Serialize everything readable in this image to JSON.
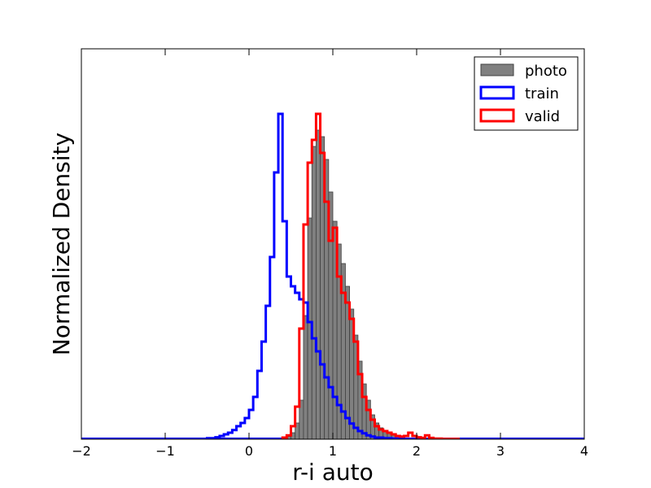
{
  "chart_data": {
    "type": "histogram",
    "xlabel": "r-i auto",
    "ylabel": "Normalized Density",
    "xlim": [
      -2,
      4
    ],
    "ylim": [
      0,
      1.2
    ],
    "x_ticks": [
      "−2",
      "−1",
      "0",
      "1",
      "2",
      "3",
      "4"
    ],
    "y_ticks": [],
    "grid": false,
    "legend": {
      "position": "top-right",
      "entries": [
        {
          "label": "photo",
          "style": "filled",
          "color": "#808080",
          "edge": "#404040"
        },
        {
          "label": "train",
          "style": "step",
          "color": "#0000ff"
        },
        {
          "label": "valid",
          "style": "step",
          "color": "#ff0000"
        }
      ]
    },
    "bin_width": 0.05,
    "series": [
      {
        "name": "photo",
        "color": "#808080",
        "edges": [
          0.4,
          0.45,
          0.5,
          0.55,
          0.6,
          0.65,
          0.7,
          0.75,
          0.8,
          0.85,
          0.9,
          0.95,
          1.0,
          1.05,
          1.1,
          1.15,
          1.2,
          1.25,
          1.3,
          1.35,
          1.4,
          1.45,
          1.5,
          1.55,
          1.6,
          1.65,
          1.7,
          1.75,
          1.8,
          1.85,
          1.9,
          2.0
        ],
        "values": [
          0.003,
          0.008,
          0.02,
          0.05,
          0.12,
          0.38,
          0.68,
          0.9,
          0.95,
          0.93,
          0.86,
          0.76,
          0.67,
          0.6,
          0.54,
          0.47,
          0.4,
          0.32,
          0.24,
          0.17,
          0.12,
          0.075,
          0.05,
          0.035,
          0.025,
          0.018,
          0.012,
          0.008,
          0.005,
          0.003,
          0.001
        ]
      },
      {
        "name": "train",
        "color": "#0000ff",
        "edges": [
          -1.0,
          -0.5,
          -0.4,
          -0.35,
          -0.3,
          -0.25,
          -0.2,
          -0.15,
          -0.1,
          -0.05,
          0.0,
          0.05,
          0.1,
          0.15,
          0.2,
          0.25,
          0.3,
          0.35,
          0.4,
          0.45,
          0.5,
          0.55,
          0.6,
          0.65,
          0.7,
          0.75,
          0.8,
          0.85,
          0.9,
          0.95,
          1.0,
          1.05,
          1.1,
          1.15,
          1.2,
          1.25,
          1.3,
          1.35,
          1.4,
          1.45,
          1.5,
          1.6,
          1.7,
          1.8,
          2.0
        ],
        "values": [
          0.001,
          0.003,
          0.006,
          0.01,
          0.015,
          0.02,
          0.028,
          0.04,
          0.05,
          0.065,
          0.09,
          0.13,
          0.21,
          0.3,
          0.41,
          0.56,
          0.82,
          1.0,
          0.67,
          0.5,
          0.47,
          0.45,
          0.43,
          0.42,
          0.36,
          0.31,
          0.27,
          0.23,
          0.19,
          0.16,
          0.13,
          0.105,
          0.085,
          0.065,
          0.048,
          0.035,
          0.025,
          0.018,
          0.012,
          0.008,
          0.005,
          0.003,
          0.002,
          0.001
        ]
      },
      {
        "name": "valid",
        "color": "#ff0000",
        "edges": [
          0.4,
          0.45,
          0.5,
          0.55,
          0.6,
          0.65,
          0.7,
          0.75,
          0.8,
          0.85,
          0.9,
          0.95,
          1.0,
          1.05,
          1.1,
          1.15,
          1.2,
          1.25,
          1.3,
          1.35,
          1.4,
          1.45,
          1.5,
          1.55,
          1.6,
          1.65,
          1.7,
          1.75,
          1.8,
          1.85,
          1.9,
          1.95,
          2.0,
          2.05,
          2.1,
          2.15,
          2.2,
          2.3,
          2.5
        ],
        "values": [
          0.005,
          0.012,
          0.04,
          0.1,
          0.34,
          0.66,
          0.85,
          0.92,
          1.0,
          0.88,
          0.73,
          0.61,
          0.65,
          0.5,
          0.45,
          0.42,
          0.37,
          0.3,
          0.2,
          0.13,
          0.09,
          0.06,
          0.04,
          0.03,
          0.025,
          0.02,
          0.015,
          0.01,
          0.008,
          0.01,
          0.02,
          0.01,
          0.006,
          0.004,
          0.012,
          0.004,
          0.002,
          0.001
        ]
      }
    ]
  }
}
